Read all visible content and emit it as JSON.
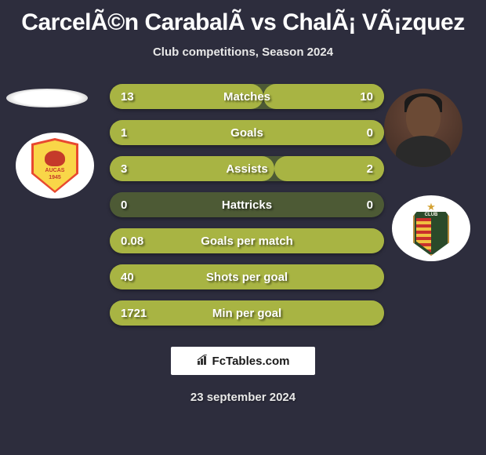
{
  "title": "CarcelÃ©n CarabalÃ­ vs ChalÃ¡ VÃ¡zquez",
  "subtitle": "Club competitions, Season 2024",
  "left": {
    "club_top_text": "AUCAS",
    "club_bottom_text": "1945"
  },
  "stats": {
    "bar_bg": "#4d5a35",
    "bar_fill": "#a8b443",
    "rows": [
      {
        "key": "matches",
        "label": "Matches",
        "left": "13",
        "right": "10",
        "fill_left_pct": 56,
        "fill_right_pct": 44
      },
      {
        "key": "goals",
        "label": "Goals",
        "left": "1",
        "right": "0",
        "fill_left_pct": 100,
        "fill_right_pct": 0
      },
      {
        "key": "assists",
        "label": "Assists",
        "left": "3",
        "right": "2",
        "fill_left_pct": 60,
        "fill_right_pct": 40
      },
      {
        "key": "hattricks",
        "label": "Hattricks",
        "left": "0",
        "right": "0",
        "fill_left_pct": 0,
        "fill_right_pct": 0
      },
      {
        "key": "gpm",
        "label": "Goals per match",
        "left": "0.08",
        "right": "",
        "fill_left_pct": 100,
        "fill_right_pct": 0
      },
      {
        "key": "spg",
        "label": "Shots per goal",
        "left": "40",
        "right": "",
        "fill_left_pct": 100,
        "fill_right_pct": 0
      },
      {
        "key": "mpg",
        "label": "Min per goal",
        "left": "1721",
        "right": "",
        "fill_left_pct": 100,
        "fill_right_pct": 0
      }
    ]
  },
  "footer": {
    "site": "FcTables.com"
  },
  "date": "23 september 2024",
  "colors": {
    "page_bg": "#2d2d3d",
    "text": "#ffffff",
    "subtext": "#e8e8e8"
  }
}
